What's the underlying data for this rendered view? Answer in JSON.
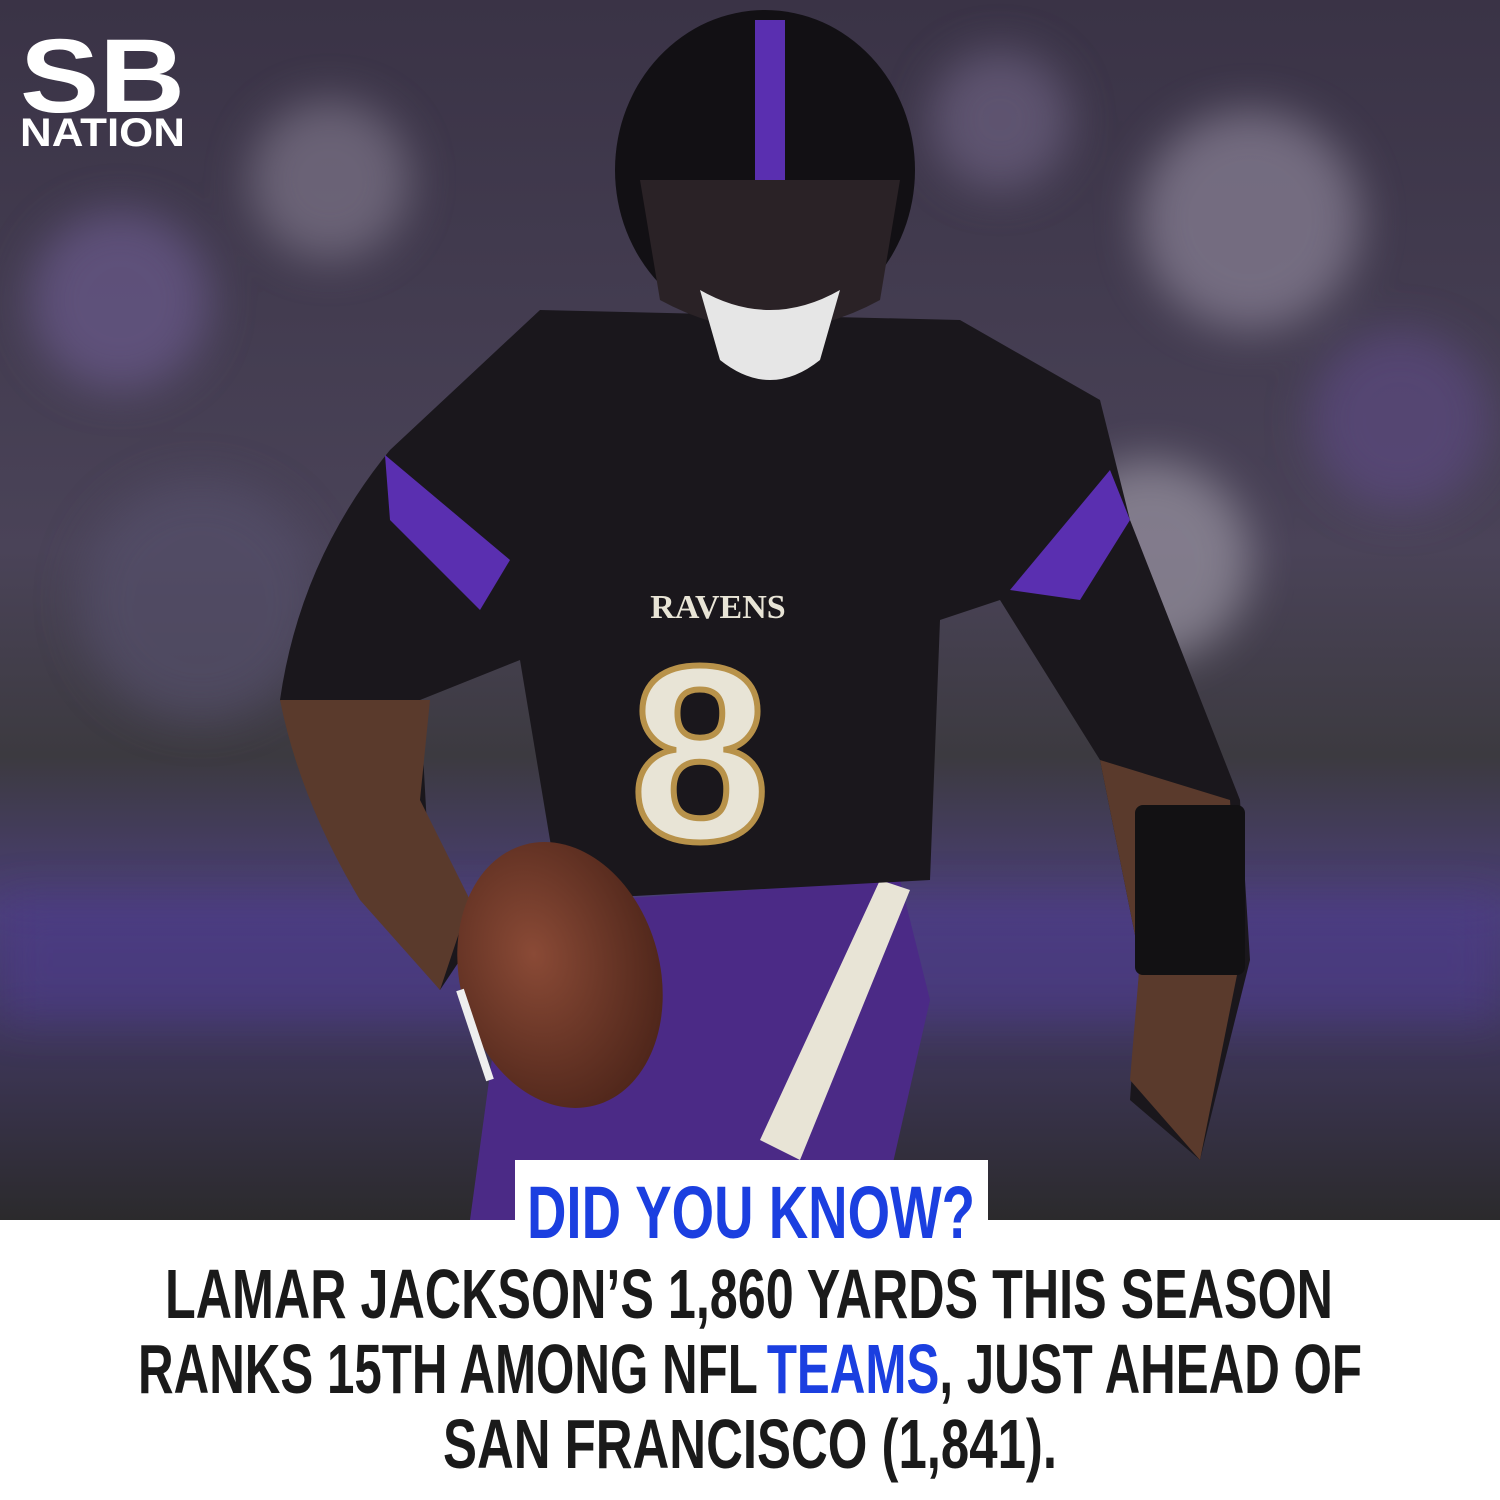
{
  "logo": {
    "top": "SB",
    "bottom": "NATION"
  },
  "photo": {
    "jersey": {
      "team": "RAVENS",
      "number": "8"
    }
  },
  "headline": "DID YOU KNOW?",
  "body": {
    "lines": [
      [
        "LAMAR JACKSON’S 1,860 YARDS THIS SEASON"
      ],
      [
        "RANKS 15TH AMONG NFL",
        "TEAMS",
        ", JUST AHEAD OF"
      ],
      [
        "SAN FRANCISCO (1,841)."
      ]
    ]
  }
}
